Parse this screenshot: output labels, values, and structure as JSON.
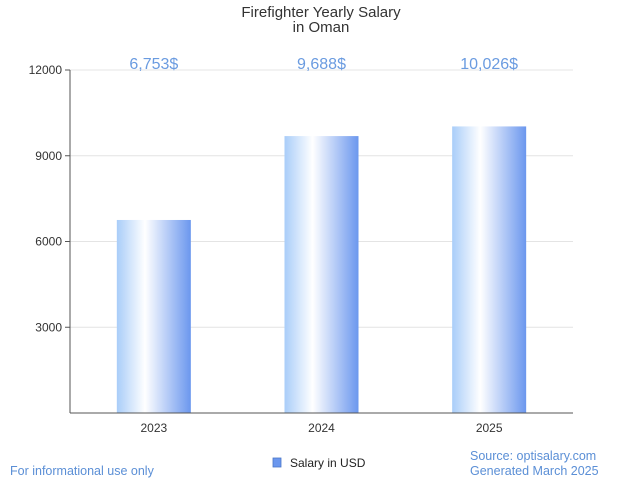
{
  "chart_data": {
    "type": "bar",
    "title": "Firefighter Yearly Salary",
    "subtitle": "in Oman",
    "categories": [
      "2023",
      "2024",
      "2025"
    ],
    "series": [
      {
        "name": "Salary in USD",
        "values": [
          6753,
          9688,
          10026
        ]
      }
    ],
    "data_labels": [
      "6,753$",
      "9,688$",
      "10,026$"
    ],
    "y_ticks": [
      3000,
      6000,
      9000,
      12000
    ],
    "ylim": [
      0,
      12000
    ],
    "grid": true,
    "legend_position": "bottom-center",
    "colors": {
      "bar_edge": "#6b97ee",
      "bar_light": "#ffffff",
      "label": "#6a9be0"
    }
  },
  "footer": {
    "left_note": "For informational use only",
    "source": "Source: optisalary.com",
    "generated": "Generated March 2025"
  }
}
